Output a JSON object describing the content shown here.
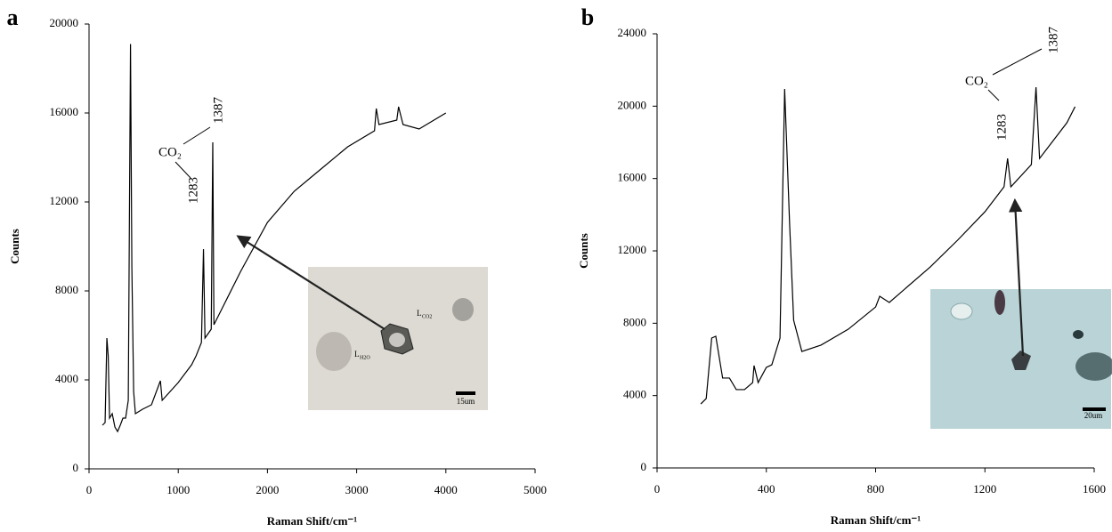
{
  "chart_data": [
    {
      "type": "line",
      "panel_label": "a",
      "xlabel": "Raman Shift/cm⁻¹",
      "ylabel": "Counts",
      "x": [
        150,
        180,
        200,
        215,
        230,
        260,
        290,
        320,
        350,
        380,
        410,
        440,
        465,
        480,
        500,
        520,
        600,
        700,
        800,
        820,
        1000,
        1150,
        1200,
        1260,
        1283,
        1300,
        1370,
        1387,
        1400,
        1500,
        1700,
        2000,
        2300,
        2600,
        2900,
        3200,
        3220,
        3250,
        3450,
        3470,
        3520,
        3700,
        4000
      ],
      "series": [
        {
          "color": "#000000",
          "values": [
            1960,
            2080,
            5880,
            5080,
            2280,
            2480,
            1880,
            1680,
            1960,
            2280,
            2280,
            3080,
            19100,
            9080,
            3480,
            2480,
            2680,
            2880,
            3960,
            3080,
            3880,
            4680,
            5080,
            5680,
            9880,
            5880,
            6280,
            14680,
            6480,
            7280,
            8880,
            11080,
            12480,
            13480,
            14480,
            15200,
            16200,
            15480,
            15680,
            16280,
            15480,
            15280,
            16000
          ]
        }
      ],
      "xlim": [
        0,
        5000
      ],
      "xticks": [
        0,
        1000,
        2000,
        3000,
        4000,
        5000
      ],
      "ylim": [
        0,
        20000
      ],
      "yticks": [
        0,
        4000,
        8000,
        12000,
        16000,
        20000
      ],
      "annotations": [
        "CO₂",
        "1283",
        "1387"
      ],
      "inset": {
        "scale_label": "15um",
        "labels": [
          {
            "main": "L",
            "sub": "CO2"
          },
          {
            "main": "L",
            "sub": "H2O"
          }
        ]
      }
    },
    {
      "type": "line",
      "panel_label": "b",
      "xlabel": "Raman Shift/cm⁻¹",
      "ylabel": "Counts",
      "x": [
        160,
        180,
        200,
        215,
        240,
        265,
        290,
        320,
        350,
        355,
        370,
        400,
        420,
        450,
        467,
        485,
        500,
        530,
        600,
        700,
        800,
        815,
        850,
        1000,
        1100,
        1200,
        1270,
        1283,
        1295,
        1370,
        1387,
        1400,
        1500,
        1530
      ],
      "series": [
        {
          "color": "#000000",
          "values": [
            3540,
            3840,
            7180,
            7280,
            4970,
            4970,
            4330,
            4330,
            4720,
            5660,
            4720,
            5560,
            5700,
            7180,
            20950,
            13570,
            8160,
            6440,
            6790,
            7670,
            8900,
            9490,
            9150,
            11110,
            12590,
            14160,
            15540,
            17110,
            15540,
            16770,
            21050,
            17110,
            19080,
            19970
          ]
        }
      ],
      "xlim": [
        0,
        1600
      ],
      "xticks": [
        0,
        400,
        800,
        1200,
        1600
      ],
      "ylim": [
        0,
        24000
      ],
      "yticks": [
        0,
        4000,
        8000,
        12000,
        16000,
        20000,
        24000
      ],
      "annotations": [
        "CO₂",
        "1283",
        "1387"
      ],
      "inset": {
        "scale_label": "20um",
        "labels": []
      }
    }
  ]
}
